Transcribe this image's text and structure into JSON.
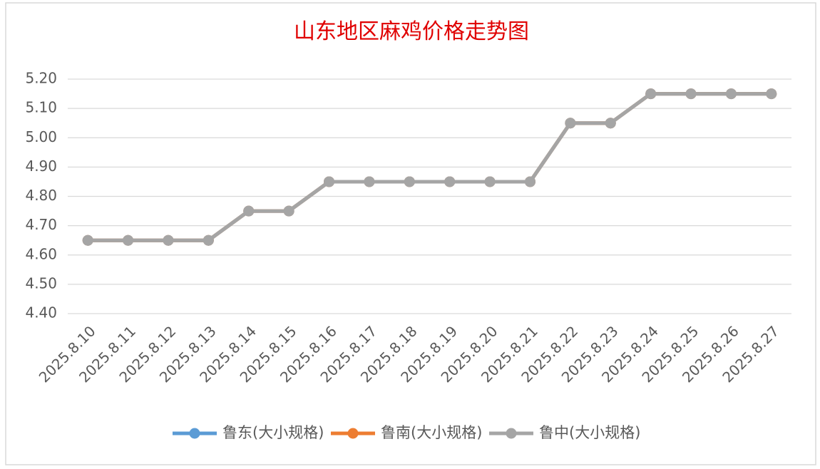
{
  "chart_data": {
    "type": "line",
    "title": "山东地区麻鸡价格走势图",
    "categories": [
      "2025.8.10",
      "2025.8.11",
      "2025.8.12",
      "2025.8.13",
      "2025.8.14",
      "2025.8.15",
      "2025.8.16",
      "2025.8.17",
      "2025.8.18",
      "2025.8.19",
      "2025.8.20",
      "2025.8.21",
      "2025.8.22",
      "2025.8.23",
      "2025.8.24",
      "2025.8.25",
      "2025.8.26",
      "2025.8.27"
    ],
    "series": [
      {
        "name": "鲁东(大小规格)",
        "color": "#5b9bd5",
        "values": [
          4.65,
          4.65,
          4.65,
          4.65,
          4.75,
          4.75,
          4.85,
          4.85,
          4.85,
          4.85,
          4.85,
          4.85,
          5.05,
          5.05,
          5.15,
          5.15,
          5.15,
          5.15
        ]
      },
      {
        "name": "鲁南(大小规格)",
        "color": "#ed7d31",
        "values": [
          4.65,
          4.65,
          4.65,
          4.65,
          4.75,
          4.75,
          4.85,
          4.85,
          4.85,
          4.85,
          4.85,
          4.85,
          5.05,
          5.05,
          5.15,
          5.15,
          5.15,
          5.15
        ]
      },
      {
        "name": "鲁中(大小规格)",
        "color": "#a5a5a5",
        "values": [
          4.65,
          4.65,
          4.65,
          4.65,
          4.75,
          4.75,
          4.85,
          4.85,
          4.85,
          4.85,
          4.85,
          4.85,
          5.05,
          5.05,
          5.15,
          5.15,
          5.15,
          5.15
        ]
      }
    ],
    "ylim": [
      4.4,
      5.2
    ],
    "yticks": [
      {
        "value": 4.4,
        "label": "4.40"
      },
      {
        "value": 4.5,
        "label": "4.50"
      },
      {
        "value": 4.6,
        "label": "4.60"
      },
      {
        "value": 4.7,
        "label": "4.70"
      },
      {
        "value": 4.8,
        "label": "4.80"
      },
      {
        "value": 4.9,
        "label": "4.90"
      },
      {
        "value": 5,
        "label": "5.00"
      },
      {
        "value": 5.1,
        "label": "5.10"
      },
      {
        "value": 5.2,
        "label": "5.20"
      }
    ],
    "grid": true,
    "legend": "bottom"
  }
}
